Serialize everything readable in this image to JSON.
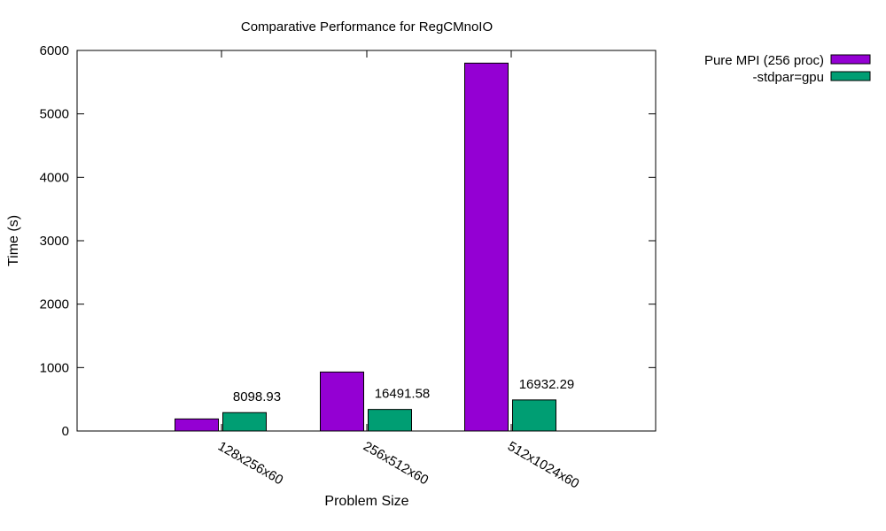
{
  "chart_data": {
    "type": "bar",
    "title": "Comparative Performance for RegCMnoIO",
    "xlabel": "Problem Size",
    "ylabel": "Time (s)",
    "ylim": [
      0,
      6000
    ],
    "yticks": [
      0,
      1000,
      2000,
      3000,
      4000,
      5000,
      6000
    ],
    "categories": [
      "128x256x60",
      "256x512x60",
      "512x1024x60"
    ],
    "series": [
      {
        "name": "Pure MPI (256 proc)",
        "color": "#9400D3",
        "values": [
          190,
          930,
          5800
        ]
      },
      {
        "name": "-stdpar=gpu",
        "color": "#009E73",
        "values": [
          290,
          340,
          490
        ]
      }
    ],
    "data_labels": [
      "8098.93",
      "16491.58",
      "16932.29"
    ],
    "legend": "top-right, outside plot",
    "grid": false
  }
}
